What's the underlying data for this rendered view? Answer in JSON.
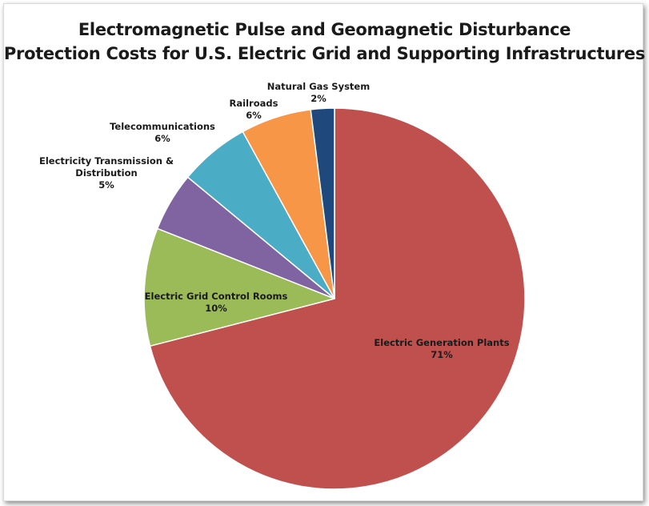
{
  "chart_data": {
    "type": "pie",
    "title": "Electromagnetic Pulse and Geomagnetic Disturbance Protection Costs for U.S. Electric Grid and Supporting Infrastructures",
    "title_lines": [
      "Electromagnetic Pulse and Geomagnetic Disturbance",
      "Protection Costs for U.S. Electric Grid and Supporting Infrastructures"
    ],
    "slices": [
      {
        "name": "Electric Generation Plants",
        "value": 71,
        "label_lines": [
          "Electric Generation Plants",
          "71%"
        ],
        "color": "#c0504d"
      },
      {
        "name": "Electric Grid Control Rooms",
        "value": 10,
        "label_lines": [
          "Electric Grid Control Rooms",
          "10%"
        ],
        "color": "#9bbb59"
      },
      {
        "name": "Electricity Transmission & Distribution",
        "value": 5,
        "label_lines": [
          "Electricity Transmission &",
          "Distribution",
          "5%"
        ],
        "color": "#8064a2"
      },
      {
        "name": "Telecommunications",
        "value": 6,
        "label_lines": [
          "Telecommunications",
          "6%"
        ],
        "color": "#4bacc6"
      },
      {
        "name": "Railroads",
        "value": 6,
        "label_lines": [
          "Railroads",
          "6%"
        ],
        "color": "#f79646"
      },
      {
        "name": "Natural Gas System",
        "value": 2,
        "label_lines": [
          "Natural Gas System",
          "2%"
        ],
        "color": "#1f497d"
      }
    ],
    "start_angle_deg": 0,
    "direction": "clockwise",
    "legend": "none"
  }
}
